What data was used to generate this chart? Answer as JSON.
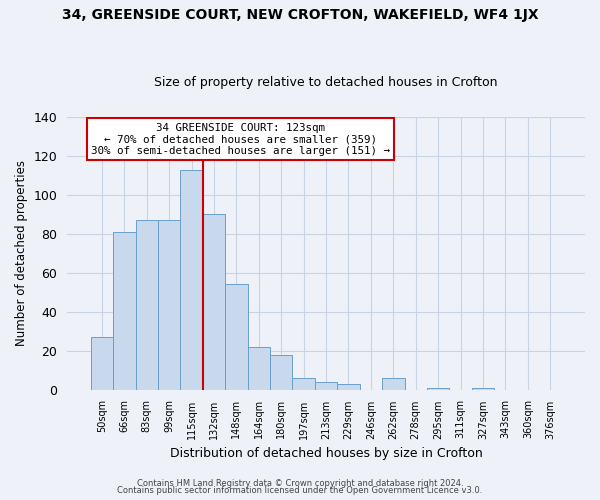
{
  "title": "34, GREENSIDE COURT, NEW CROFTON, WAKEFIELD, WF4 1JX",
  "subtitle": "Size of property relative to detached houses in Crofton",
  "xlabel": "Distribution of detached houses by size in Crofton",
  "ylabel": "Number of detached properties",
  "bar_values": [
    27,
    81,
    87,
    87,
    113,
    90,
    54,
    22,
    18,
    6,
    4,
    3,
    0,
    6,
    0,
    1,
    0,
    1,
    0,
    0,
    0
  ],
  "bar_labels": [
    "50sqm",
    "66sqm",
    "83sqm",
    "99sqm",
    "115sqm",
    "132sqm",
    "148sqm",
    "164sqm",
    "180sqm",
    "197sqm",
    "213sqm",
    "229sqm",
    "246sqm",
    "262sqm",
    "278sqm",
    "295sqm",
    "311sqm",
    "327sqm",
    "343sqm",
    "360sqm",
    "376sqm"
  ],
  "bar_color": "#c9d9ed",
  "bar_edge_color": "#6a9fca",
  "vline_color": "#cc0000",
  "vline_x": 4.5,
  "ylim": [
    0,
    140
  ],
  "yticks": [
    0,
    20,
    40,
    60,
    80,
    100,
    120,
    140
  ],
  "annotation_title": "34 GREENSIDE COURT: 123sqm",
  "annotation_line1": "← 70% of detached houses are smaller (359)",
  "annotation_line2": "30% of semi-detached houses are larger (151) →",
  "annotation_box_color": "white",
  "annotation_box_edge": "#cc0000",
  "footer1": "Contains HM Land Registry data © Crown copyright and database right 2024.",
  "footer2": "Contains public sector information licensed under the Open Government Licence v3.0.",
  "background_color": "#eef2f8",
  "grid_color": "#c8d4e4",
  "title_fontsize": 10,
  "subtitle_fontsize": 9
}
